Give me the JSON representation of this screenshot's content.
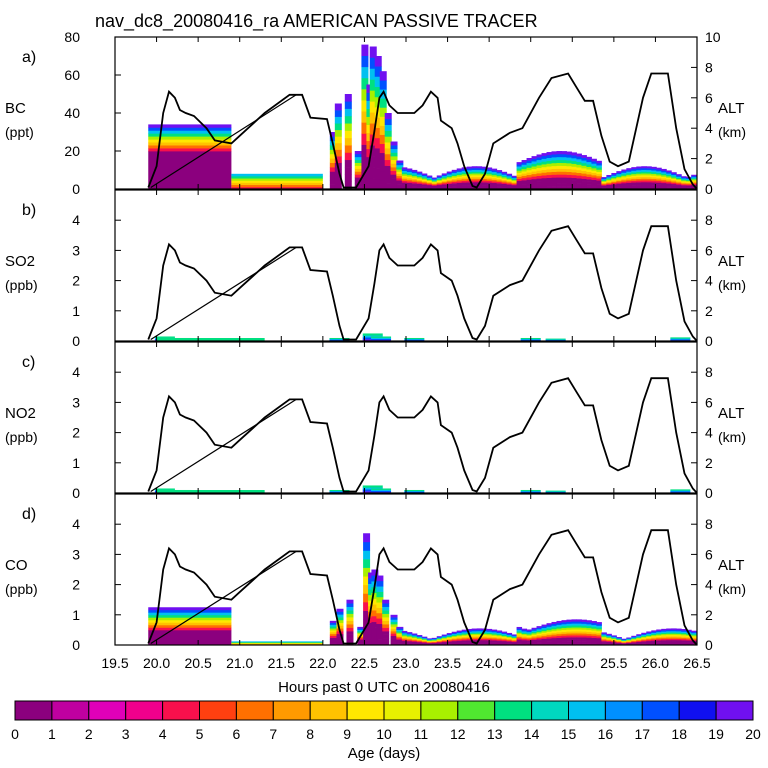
{
  "chart_data": {
    "type": "area",
    "title": "nav_dc8_20080416_ra AMERICAN PASSIVE TRACER",
    "xlabel": "Hours past 0 UTC on 20080416",
    "xlim": [
      19.5,
      26.5
    ],
    "x_ticks": [
      "19.5",
      "20.0",
      "20.5",
      "21.0",
      "21.5",
      "22.0",
      "22.5",
      "23.0",
      "23.5",
      "24.0",
      "24.5",
      "25.0",
      "25.5",
      "26.0",
      "26.5"
    ],
    "altitude_axis": {
      "label": "ALT",
      "unit": "(km)",
      "ylim": [
        0,
        10
      ]
    },
    "colorbar": {
      "label": "Age (days)",
      "ticks": [
        "0",
        "1",
        "2",
        "3",
        "4",
        "5",
        "6",
        "7",
        "8",
        "9",
        "10",
        "11",
        "12",
        "13",
        "14",
        "15",
        "16",
        "17",
        "18",
        "19",
        "20"
      ],
      "colors": [
        "#8b007e",
        "#c000a0",
        "#e000b8",
        "#f0008c",
        "#f8104c",
        "#ff4010",
        "#ff7000",
        "#ff9a00",
        "#ffc200",
        "#ffe800",
        "#e8f000",
        "#a8f000",
        "#50e830",
        "#00e080",
        "#00d8c0",
        "#00c0f0",
        "#0090ff",
        "#0050ff",
        "#1010f0",
        "#7010f0"
      ]
    },
    "panels": [
      {
        "letter": "a)",
        "species": "BC",
        "unit": "(ppt)",
        "ylim": [
          0,
          80
        ],
        "y_ticks": [
          "0",
          "20",
          "40",
          "60",
          "80"
        ],
        "alt_ticks": [
          "0",
          "2",
          "4",
          "6",
          "8",
          "10"
        ],
        "alt_max": 10
      },
      {
        "letter": "b)",
        "species": "SO2",
        "unit": "(ppb)",
        "ylim": [
          0,
          5
        ],
        "y_ticks": [
          "0",
          "1",
          "2",
          "3",
          "4"
        ],
        "alt_ticks": [
          "0",
          "2",
          "4",
          "6",
          "8"
        ],
        "alt_max": 10
      },
      {
        "letter": "c)",
        "species": "NO2",
        "unit": "(ppb)",
        "ylim": [
          0,
          5
        ],
        "y_ticks": [
          "0",
          "1",
          "2",
          "3",
          "4"
        ],
        "alt_ticks": [
          "0",
          "2",
          "4",
          "6",
          "8"
        ],
        "alt_max": 10
      },
      {
        "letter": "d)",
        "species": "CO",
        "unit": "(ppb)",
        "ylim": [
          0,
          5
        ],
        "y_ticks": [
          "0",
          "1",
          "2",
          "3",
          "4"
        ],
        "alt_ticks": [
          "0",
          "2",
          "4",
          "6",
          "8"
        ],
        "alt_max": 10
      }
    ],
    "altitude_track_km": [
      [
        19.9,
        0.1
      ],
      [
        20.0,
        1.5
      ],
      [
        20.08,
        5.0
      ],
      [
        20.15,
        6.4
      ],
      [
        20.22,
        6.0
      ],
      [
        20.28,
        5.2
      ],
      [
        20.35,
        5.0
      ],
      [
        20.45,
        4.8
      ],
      [
        20.6,
        4.0
      ],
      [
        20.7,
        3.2
      ],
      [
        20.9,
        3.0
      ],
      [
        21.0,
        3.5
      ],
      [
        21.3,
        5.0
      ],
      [
        21.6,
        6.2
      ],
      [
        21.75,
        6.2
      ],
      [
        21.85,
        4.7
      ],
      [
        22.05,
        4.6
      ],
      [
        22.12,
        3.0
      ],
      [
        22.2,
        1.0
      ],
      [
        22.25,
        0.1
      ],
      [
        22.4,
        0.1
      ],
      [
        22.55,
        1.5
      ],
      [
        22.62,
        3.8
      ],
      [
        22.68,
        6.0
      ],
      [
        22.73,
        6.4
      ],
      [
        22.8,
        5.5
      ],
      [
        22.9,
        5.0
      ],
      [
        23.1,
        5.0
      ],
      [
        23.2,
        5.5
      ],
      [
        23.3,
        6.4
      ],
      [
        23.38,
        6.0
      ],
      [
        23.42,
        4.5
      ],
      [
        23.55,
        4.0
      ],
      [
        23.62,
        3.0
      ],
      [
        23.7,
        1.5
      ],
      [
        23.8,
        0.2
      ],
      [
        23.85,
        0.1
      ],
      [
        23.95,
        1.0
      ],
      [
        24.05,
        3.0
      ],
      [
        24.25,
        3.7
      ],
      [
        24.4,
        4.0
      ],
      [
        24.6,
        6.0
      ],
      [
        24.75,
        7.3
      ],
      [
        24.95,
        7.6
      ],
      [
        25.05,
        6.7
      ],
      [
        25.15,
        5.8
      ],
      [
        25.25,
        5.8
      ],
      [
        25.35,
        3.5
      ],
      [
        25.45,
        1.8
      ],
      [
        25.55,
        1.5
      ],
      [
        25.68,
        1.8
      ],
      [
        25.85,
        6.0
      ],
      [
        25.95,
        7.6
      ],
      [
        26.15,
        7.6
      ],
      [
        26.25,
        4.0
      ],
      [
        26.35,
        1.3
      ],
      [
        26.45,
        0.3
      ],
      [
        26.5,
        0.0
      ]
    ],
    "ferry_leg_km": [
      [
        19.93,
        0.1
      ],
      [
        21.68,
        6.2
      ]
    ]
  }
}
